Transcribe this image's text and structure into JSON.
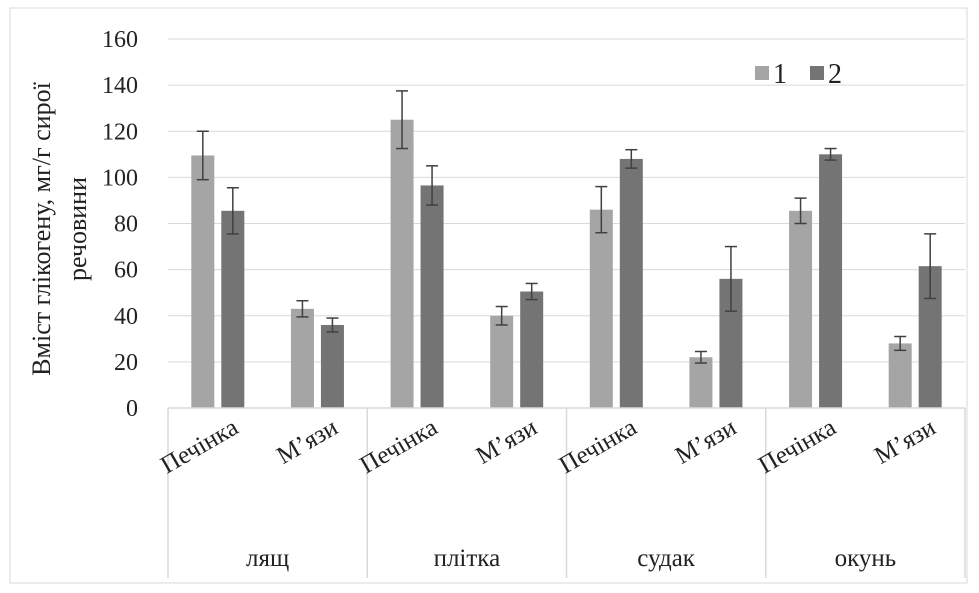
{
  "chart_data": {
    "type": "bar",
    "ylabel_line1": "Вміст глікогену, мг/г сирої",
    "ylabel_line2": "речовини",
    "ylim": [
      0,
      160
    ],
    "yticks": [
      0,
      20,
      40,
      60,
      80,
      100,
      120,
      140,
      160
    ],
    "ytick_labels": [
      "0",
      "20",
      "40",
      "60",
      "80",
      "100",
      "120",
      "140",
      "160"
    ],
    "grid": true,
    "legend_position": "top-right",
    "groups": [
      "лящ",
      "плітка",
      "судак",
      "окунь"
    ],
    "categories": [
      "Печінка",
      "М’язи",
      "Печінка",
      "М’язи",
      "Печінка",
      "М’язи",
      "Печінка",
      "М’язи"
    ],
    "series": [
      {
        "name": "1",
        "color": "#a5a5a5",
        "values": [
          109.5,
          43,
          125,
          40,
          86,
          22,
          85.5,
          28
        ],
        "errors": [
          10.5,
          3.5,
          12.5,
          4,
          10,
          2.5,
          5.5,
          3
        ]
      },
      {
        "name": "2",
        "color": "#747474",
        "values": [
          85.5,
          36,
          96.5,
          50.5,
          108,
          56,
          110,
          61.5
        ],
        "errors": [
          10,
          3,
          8.5,
          3.5,
          4,
          14,
          2.5,
          14
        ]
      }
    ]
  }
}
